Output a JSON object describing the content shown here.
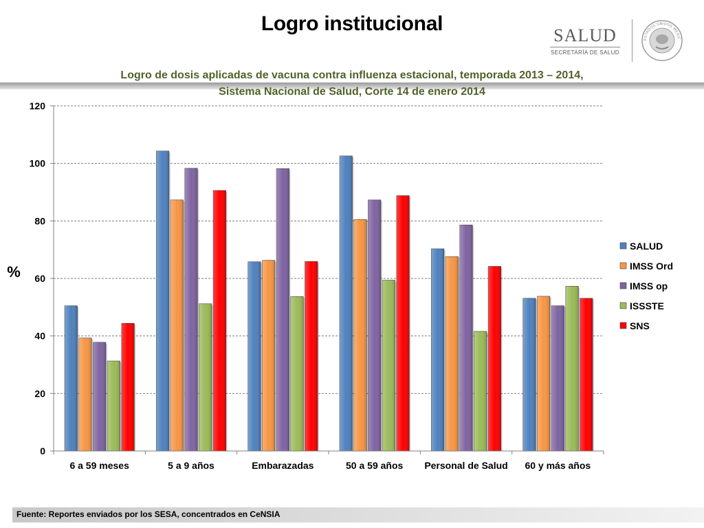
{
  "page": {
    "title": "Logro institucional",
    "logo_text": "SALUD",
    "logo_subtext": "SECRETARÍA DE SALUD",
    "seal_text": "ESTADOS UNIDOS MEXICANOS",
    "subtitle_line1": "Logro de dosis aplicadas de vacuna contra influenza estacional, temporada 2013 – 2014,",
    "subtitle_line2": "Sistema Nacional de Salud, Corte 14 de enero 2014",
    "footer": "Fuente: Reportes enviados por los SESA, concentrados en CeNSIA"
  },
  "chart_data": {
    "type": "bar",
    "title": "Logro de dosis aplicadas de vacuna contra influenza estacional, temporada 2013 – 2014, Sistema Nacional de Salud, Corte 14 de enero 2014",
    "xlabel": "",
    "ylabel": "%",
    "ylim": [
      0,
      120
    ],
    "yticks": [
      0,
      20,
      40,
      60,
      80,
      100,
      120
    ],
    "grid": true,
    "legend_position": "right",
    "categories": [
      "6 a 59 meses",
      "5 a 9 años",
      "Embarazadas",
      "50 a 59 años",
      "Personal de Salud",
      "60 y más años"
    ],
    "series": [
      {
        "name": "SALUD",
        "color": "#4f81bd",
        "values": [
          50.5,
          104.3,
          65.8,
          102.6,
          70.3,
          53.1
        ]
      },
      {
        "name": "IMSS Ord",
        "color": "#f79646",
        "values": [
          39.3,
          87.3,
          66.3,
          80.5,
          67.6,
          53.8
        ]
      },
      {
        "name": "IMSS op",
        "color": "#8064a2",
        "values": [
          37.8,
          98.3,
          98.2,
          87.3,
          78.6,
          50.5
        ]
      },
      {
        "name": "ISSSTE",
        "color": "#9bbb59",
        "values": [
          31.3,
          51.2,
          53.7,
          59.4,
          41.6,
          57.3
        ]
      },
      {
        "name": "SNS",
        "color": "#ff0000",
        "values": [
          44.4,
          90.6,
          65.9,
          88.8,
          64.2,
          53.1
        ]
      }
    ]
  }
}
